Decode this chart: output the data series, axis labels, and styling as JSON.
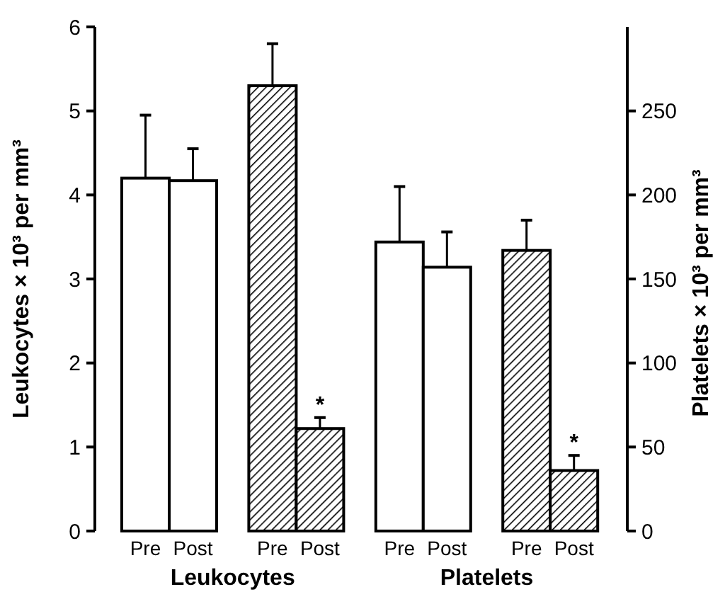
{
  "chart_data": {
    "type": "bar",
    "ylabel": "Leukocytes × 10³ per mm³",
    "y2label": "Platelets × 10³ per mm³",
    "categories": [
      "Pre",
      "Post",
      "Pre",
      "Post",
      "Pre",
      "Post",
      "Pre",
      "Post"
    ],
    "series": [
      {
        "color": "#ffffff",
        "values": [
          4.2,
          4.17,
          null,
          null,
          null,
          null,
          null,
          null
        ],
        "errors": [
          [
            4.2,
            4.95
          ],
          [
            4.17,
            4.55
          ],
          null,
          null,
          null,
          null,
          null,
          null
        ]
      },
      {
        "color": "#000000",
        "values": [
          null,
          null,
          5.3,
          1.22,
          null,
          null,
          null,
          null
        ],
        "errors": [
          null,
          null,
          [
            5.3,
            5.8
          ],
          [
            1.22,
            1.35
          ],
          null,
          null,
          null,
          null
        ]
      },
      {
        "color": "#ffffff",
        "axis": "y2",
        "values": [
          null,
          null,
          null,
          null,
          172,
          157,
          null,
          null
        ],
        "errors": [
          null,
          null,
          null,
          null,
          [
            172,
            205
          ],
          [
            157,
            178
          ],
          null,
          null
        ]
      },
      {
        "color": "#000000",
        "axis": "y2",
        "values": [
          null,
          null,
          null,
          null,
          null,
          null,
          167,
          36
        ],
        "errors": [
          null,
          null,
          null,
          null,
          null,
          null,
          [
            167,
            185
          ],
          [
            36,
            45
          ]
        ]
      }
    ],
    "ylim": [
      0,
      6
    ],
    "yticks": [
      0,
      1,
      2,
      3,
      4,
      5,
      6
    ],
    "y2lim": [
      0,
      300
    ],
    "y2ticks": [
      0,
      50,
      100,
      150,
      200,
      250
    ],
    "annotations": [
      "Leukocytes",
      "Platelets",
      "*",
      "*"
    ],
    "grid": false
  }
}
